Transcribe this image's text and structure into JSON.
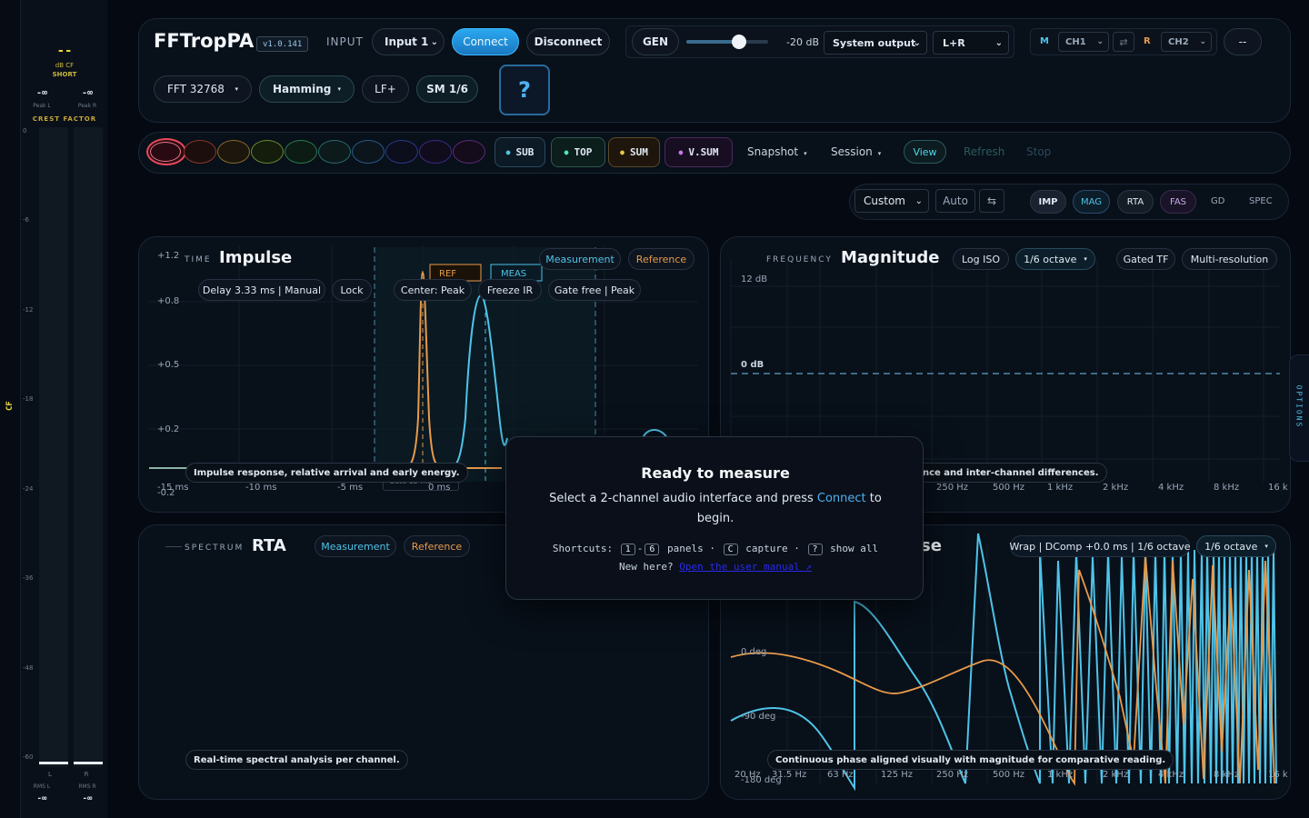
{
  "meter": {
    "top_value": "--",
    "top_sub1": "dB CF",
    "top_sub2": "SHORT",
    "peak_l_value": "-∞",
    "peak_r_value": "-∞",
    "peak_l_label": "Peak L",
    "peak_r_label": "Peak R",
    "crest_label": "CREST FACTOR",
    "scale": [
      "0",
      "-6",
      "-12",
      "-18",
      "-24",
      "-36",
      "-48",
      "-60"
    ],
    "side_label": "CF",
    "l_label": "L",
    "r_label": "R",
    "rms_l_label": "RMS L",
    "rms_r_label": "RMS R",
    "rms_l_value": "-∞",
    "rms_r_value": "-∞"
  },
  "header": {
    "app_name": "FFTropPA",
    "version": "v1.0.141",
    "input_label": "INPUT",
    "input_value": "Input 1",
    "connect": "Connect",
    "disconnect": "Disconnect",
    "gen": "GEN",
    "gen_level": "-20 dB",
    "output": "System output",
    "output_mode": "L+R",
    "m_label": "M",
    "ch1": "CH1",
    "swap": "⇄",
    "r_label": "R",
    "ch2": "CH2",
    "more": "--",
    "fft": "FFT 32768",
    "window": "Hamming",
    "lf": "LF+",
    "smoothing": "SM 1/6",
    "help": "?"
  },
  "colors": {
    "accent": "#2aa0e8",
    "measurement": "#4fc3e8",
    "reference": "#e89a4a"
  },
  "toolbar": {
    "sub": "SUB",
    "top": "TOP",
    "sum": "SUM",
    "vsum": "V.SUM",
    "snapshot": "Snapshot",
    "session": "Session",
    "view": "View",
    "refresh": "Refresh",
    "stop": "Stop"
  },
  "viewbar": {
    "preset": "Custom",
    "auto": "Auto",
    "swap": "⇆",
    "tabs": [
      "IMP",
      "MAG",
      "RTA",
      "FAS",
      "GD",
      "SPEC"
    ]
  },
  "impulse": {
    "label": "TIME",
    "title": "Impulse",
    "measurement": "Measurement",
    "reference": "Reference",
    "delay": "Delay 3.33 ms | Manual",
    "lock": "Lock",
    "center": "Center: Peak",
    "freeze": "Freeze IR",
    "gate": "Gate free | Peak",
    "ref_marker": "REF",
    "meas_marker": "MEAS",
    "gate_caption": "Gate 12 ms",
    "y_ticks": [
      "+1.2",
      "+0.8",
      "+0.5",
      "+0.2",
      "-0.2"
    ],
    "x_ticks": [
      "-15 ms",
      "-10 ms",
      "-5 ms",
      "0 ms"
    ],
    "caption": "Impulse response, relative arrival and early energy."
  },
  "magnitude": {
    "label": "FREQUENCY",
    "title": "Magnitude",
    "log_iso": "Log ISO",
    "octave": "1/6 octave",
    "gated": "Gated TF",
    "multires": "Multi-resolution",
    "y_top": "12 dB",
    "y_zero": "0 dB",
    "x_ticks": [
      "250 Hz",
      "500 Hz",
      "1 kHz",
      "2 kHz",
      "4 kHz",
      "8 kHz",
      "16 k"
    ],
    "caption": "nce and inter-channel differences."
  },
  "rta": {
    "label": "SPECTRUM",
    "title": "RTA",
    "measurement": "Measurement",
    "reference": "Reference",
    "caption": "Real-time spectral analysis per channel."
  },
  "phase": {
    "title_fragment": "se",
    "wrap": "Wrap | DComp +0.0 ms | 1/6 octave",
    "octave": "1/6 octave",
    "y_ticks": [
      "0 deg",
      "-90 deg",
      "-180 deg"
    ],
    "x_ticks": [
      "20 Hz",
      "31.5 Hz",
      "63 Hz",
      "125 Hz",
      "250 Hz",
      "500 Hz",
      "1 kHz",
      "2 kHz",
      "4 kHz",
      "8 kHz",
      "16 k"
    ],
    "caption": "Continuous phase aligned visually with magnitude for comparative reading."
  },
  "options_tab": "OPTIONS",
  "modal": {
    "title": "Ready to measure",
    "body_pre": "Select a 2-channel audio interface and press ",
    "body_link": "Connect",
    "body_post": " to begin.",
    "shortcuts_label": "Shortcuts:",
    "key1": "1",
    "dash": "-",
    "key6": "6",
    "panels": "panels ·",
    "keyc": "C",
    "capture": "capture ·",
    "keyq": "?",
    "show_all": "show all",
    "new_here": "New here?",
    "manual_link": "Open the user manual ↗"
  }
}
